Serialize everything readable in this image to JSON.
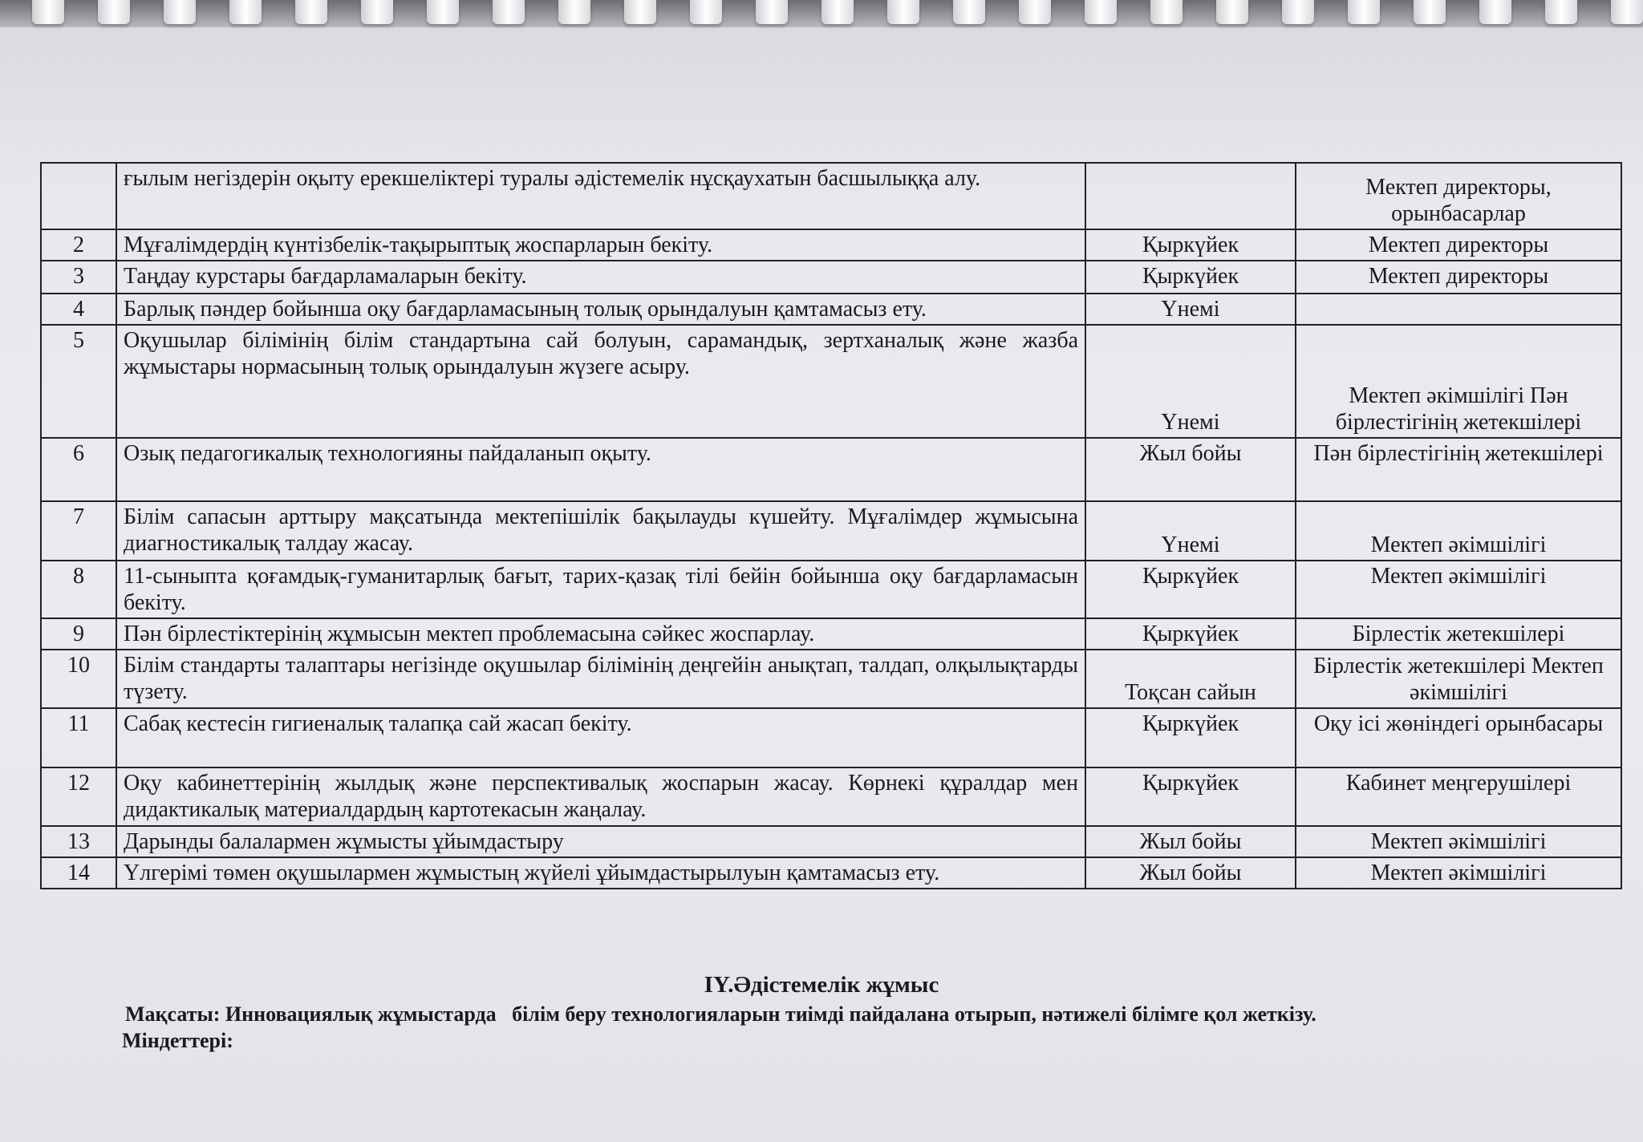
{
  "rows": [
    {
      "num": "",
      "task": "ғылым негіздерін оқыту ерекшеліктері туралы әдістемелік нұсқаухатын басшылыққа алу.",
      "time": "",
      "resp": "Мектеп директоры, орынбасарлар"
    },
    {
      "num": "2",
      "task": "Мұғалімдердің күнтізбелік-тақырыптық жоспарларын бекіту.",
      "time": "Қыркүйек",
      "resp": "Мектеп директоры"
    },
    {
      "num": "3",
      "task": "Таңдау курстары бағдарламаларын бекіту.",
      "time": "Қыркүйек",
      "resp": "Мектеп директоры"
    },
    {
      "num": "4",
      "task": "Барлық пәндер бойынша оқу бағдарламасының толық орындалуын қамтамасыз ету.",
      "time": "Үнемі",
      "resp": ""
    },
    {
      "num": "5",
      "task": "Оқушылар білімінің білім стандартына сай болуын, сарамандық, зертханалық және жазба жұмыстары нормасының толық орындалуын жүзеге асыру.",
      "time": "Үнемі",
      "resp": "Мектеп әкімшілігі Пән бірлестігінің жетекшілері"
    },
    {
      "num": "6",
      "task": "Озық педагогикалық технологияны пайдаланып оқыту.",
      "time": "Жыл бойы",
      "resp": "Пән бірлестігінің жетекшілері"
    },
    {
      "num": "7",
      "task": "Білім сапасын арттыру мақсатында мектепішілік бақылауды күшейту. Мұғалімдер жұмысына диагностикалық талдау жасау.",
      "time": "Үнемі",
      "resp": "Мектеп әкімшілігі"
    },
    {
      "num": "8",
      "task": "11-сыныпта  қоғамдық-гуманитарлық бағыт, тарих-қазақ тілі бейін  бойынша оқу бағдарламасын бекіту.",
      "time": "Қыркүйек",
      "resp": "Мектеп әкімшілігі"
    },
    {
      "num": "9",
      "task": "Пән бірлестіктерінің жұмысын мектеп проблемасына сәйкес жоспарлау.",
      "time": "Қыркүйек",
      "resp": "Бірлестік жетекшілері"
    },
    {
      "num": "10",
      "task": "Білім стандарты талаптары негізінде оқушылар білімінің деңгейін анықтап, талдап, олқылықтарды түзету.",
      "time": "Тоқсан сайын",
      "resp": "Бірлестік жетекшілері Мектеп әкімшілігі"
    },
    {
      "num": "11",
      "task": "Сабақ кестесін гигиеналық талапқа сай жасап бекіту.",
      "time": "Қыркүйек",
      "resp": "Оқу ісі жөніндегі орынбасары"
    },
    {
      "num": "12",
      "task": "Оқу кабинеттерінің жылдық және перспективалық жоспарын жасау. Көрнекі құралдар мен дидактикалық материалдардың картотекасын жаңалау.",
      "time": "Қыркүйек",
      "resp": "Кабинет меңгерушілері"
    },
    {
      "num": "13",
      "task": "Дарынды балалармен жұмысты ұйымдастыру",
      "time": "Жыл бойы",
      "resp": "Мектеп әкімшілігі"
    },
    {
      "num": "14",
      "task": "Үлгерімі төмен оқушылармен жұмыстың жүйелі ұйымдастырылуын қамтамасыз ету.",
      "time": "Жыл бойы",
      "resp": "Мектеп әкімшілігі"
    }
  ],
  "section": {
    "heading": "IY.Әдістемелік жұмыс",
    "goal": "Мақсаты: Инновациялық жұмыстарда   білім беру технологияларын тиімді пайдалана отырып, нәтижелі білімге қол жеткізу.",
    "tasks_label": "Міндеттері:"
  }
}
